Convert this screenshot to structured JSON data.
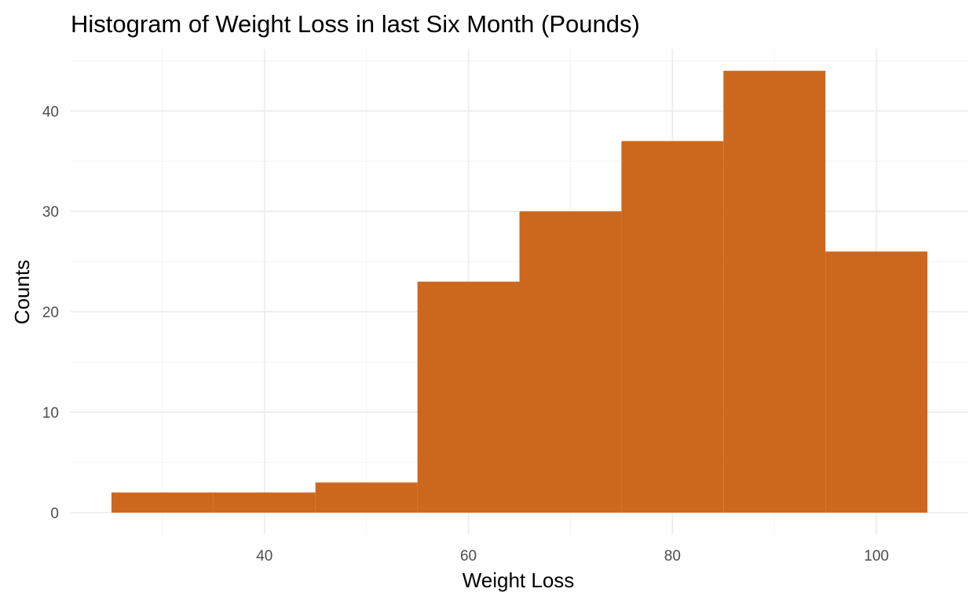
{
  "chart_data": {
    "type": "bar",
    "title": "Histogram of Weight Loss in last Six Month (Pounds)",
    "xlabel": "Weight Loss",
    "ylabel": "Counts",
    "bins": [
      {
        "start": 25,
        "end": 35,
        "count": 2
      },
      {
        "start": 35,
        "end": 45,
        "count": 2
      },
      {
        "start": 45,
        "end": 55,
        "count": 3
      },
      {
        "start": 55,
        "end": 65,
        "count": 23
      },
      {
        "start": 65,
        "end": 75,
        "count": 30
      },
      {
        "start": 75,
        "end": 85,
        "count": 37
      },
      {
        "start": 85,
        "end": 95,
        "count": 44
      },
      {
        "start": 95,
        "end": 105,
        "count": 26
      }
    ],
    "xlim": [
      21,
      109
    ],
    "ylim": [
      -2.2,
      46.2
    ],
    "x_ticks": [
      40,
      60,
      80,
      100
    ],
    "x_minor_ticks": [
      30,
      50,
      70,
      90
    ],
    "y_ticks": [
      0,
      10,
      20,
      30,
      40
    ],
    "y_minor_ticks": [
      5,
      15,
      25,
      35,
      45
    ],
    "bar_color": "#CC671E",
    "grid": true,
    "legend": "none"
  }
}
